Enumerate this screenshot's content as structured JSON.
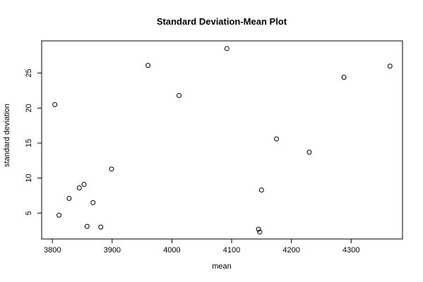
{
  "chart_data": {
    "type": "scatter",
    "title": "Standard Deviation-Mean Plot",
    "xlabel": "mean",
    "ylabel": "standard deviation",
    "xlim": [
      3782,
      4386
    ],
    "ylim": [
      1.3,
      29.6
    ],
    "x_ticks": [
      3800,
      3900,
      4000,
      4100,
      4200,
      4300
    ],
    "y_ticks": [
      5,
      10,
      15,
      20,
      25
    ],
    "grid": false,
    "marker": "open-circle",
    "colors": {
      "points": "#000000",
      "axes": "#000000",
      "background": "#ffffff"
    },
    "points": [
      {
        "x": 3804,
        "y": 20.5
      },
      {
        "x": 3811,
        "y": 4.7
      },
      {
        "x": 3828,
        "y": 7.1
      },
      {
        "x": 3845,
        "y": 8.6
      },
      {
        "x": 3853,
        "y": 9.1
      },
      {
        "x": 3858,
        "y": 3.1
      },
      {
        "x": 3868,
        "y": 6.5
      },
      {
        "x": 3881,
        "y": 3.0
      },
      {
        "x": 3899,
        "y": 11.3
      },
      {
        "x": 3960,
        "y": 26.1
      },
      {
        "x": 4012,
        "y": 21.8
      },
      {
        "x": 4092,
        "y": 28.5
      },
      {
        "x": 4145,
        "y": 2.7
      },
      {
        "x": 4147,
        "y": 2.3
      },
      {
        "x": 4150,
        "y": 8.3
      },
      {
        "x": 4175,
        "y": 15.6
      },
      {
        "x": 4230,
        "y": 13.7
      },
      {
        "x": 4288,
        "y": 24.4
      },
      {
        "x": 4365,
        "y": 26.0
      }
    ]
  }
}
